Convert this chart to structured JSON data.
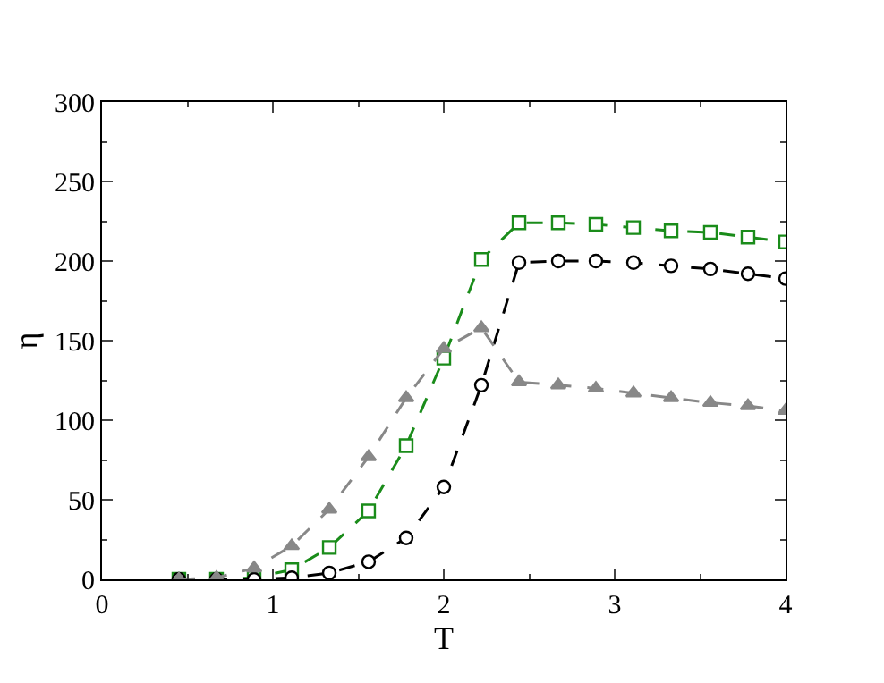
{
  "chart_data": {
    "type": "line",
    "xlabel": "T",
    "ylabel": "η",
    "x": [
      0.45,
      0.67,
      0.89,
      1.11,
      1.33,
      1.56,
      1.78,
      2.0,
      2.22,
      2.44,
      2.67,
      2.89,
      3.11,
      3.33,
      3.56,
      3.78,
      4.0
    ],
    "series": [
      {
        "color": "#1a8c1a",
        "marker": "square",
        "values": [
          0,
          0,
          1,
          6,
          20,
          43,
          84,
          139,
          201,
          224,
          224,
          223,
          221,
          219,
          218,
          215,
          212
        ]
      },
      {
        "color": "#000000",
        "marker": "circle",
        "values": [
          0,
          0,
          0,
          1,
          4,
          11,
          26,
          58,
          122,
          199,
          200,
          200,
          199,
          197,
          195,
          192,
          189
        ]
      },
      {
        "color": "#888888",
        "marker": "triangle",
        "values": [
          0,
          1,
          7,
          21,
          44,
          77,
          114,
          145,
          158,
          124,
          122,
          120,
          117,
          114,
          111,
          109,
          106
        ]
      }
    ],
    "line_style": "dashed",
    "xlim": [
      0,
      4
    ],
    "xticks": [
      0,
      1,
      2,
      3,
      4
    ],
    "ylim": [
      0,
      300
    ],
    "yticks": [
      0,
      50,
      100,
      150,
      200,
      250,
      300
    ]
  }
}
